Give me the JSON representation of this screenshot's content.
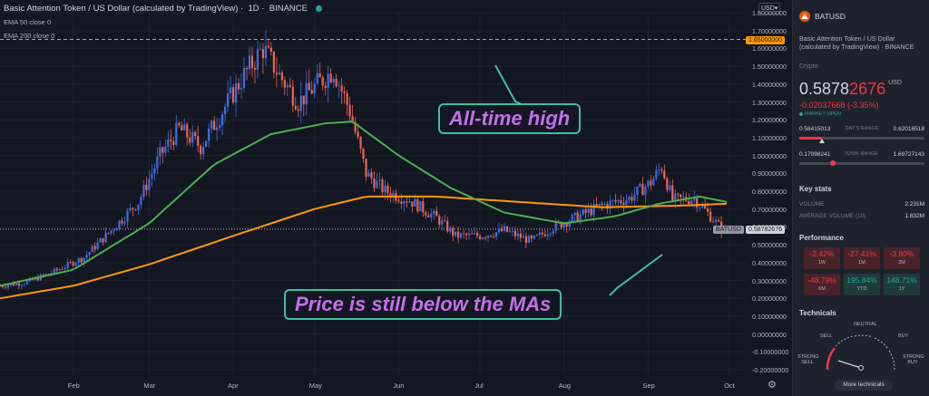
{
  "header": {
    "title": "Basic Attention Token / US Dollar (calculated by TradingView)",
    "interval": "1D",
    "exchange": "BINANCE",
    "ema50": "EMA 50 close 0",
    "ema200": "EMA 200 close 0",
    "currency": "USD"
  },
  "yaxis": {
    "labels": [
      "1.80000000",
      "1.70000000",
      "1.60000000",
      "1.50000000",
      "1.40000000",
      "1.30000000",
      "1.20000000",
      "1.10000000",
      "1.00000000",
      "0.90000000",
      "0.80000000",
      "0.70000000",
      "0.60000000",
      "0.50000000",
      "0.40000000",
      "0.30000000",
      "0.20000000",
      "0.10000000",
      "0.00000000",
      "-0.10000000",
      "-0.20000000"
    ],
    "ath_tag": "1.65000000",
    "price_tag": "0.58782676",
    "symbol_tag": "BATUSD"
  },
  "xaxis": {
    "labels": [
      "Feb",
      "Mar",
      "Apr",
      "May",
      "Jun",
      "Jul",
      "Aug",
      "Sep",
      "Oct"
    ]
  },
  "annotations": {
    "ath": "All-time high",
    "below": "Price is still below the MAs"
  },
  "colors": {
    "up": "#26a69a",
    "up_candle": "#3b6ee8",
    "down": "#f23645",
    "down_candle": "#f0624d",
    "ema50": "#4caf50",
    "ema200": "#ff9800",
    "annotation_text": "#c46fe8",
    "annotation_border": "#3ebfa0",
    "ath_line": "#ff9800"
  },
  "chart_data": {
    "type": "candlestick",
    "y_range": [
      -0.2,
      1.8
    ],
    "ath_level": 1.65,
    "last_price": 0.58782676,
    "x_start": "2021-01-05",
    "x_end": "2021-10-07",
    "close_path": [
      [
        "2021-01-05",
        0.27
      ],
      [
        "2021-01-15",
        0.29
      ],
      [
        "2021-01-25",
        0.35
      ],
      [
        "2021-02-05",
        0.43
      ],
      [
        "2021-02-15",
        0.58
      ],
      [
        "2021-02-25",
        0.74
      ],
      [
        "2021-03-05",
        1.0
      ],
      [
        "2021-03-12",
        1.15
      ],
      [
        "2021-03-20",
        1.05
      ],
      [
        "2021-03-28",
        1.25
      ],
      [
        "2021-04-05",
        1.45
      ],
      [
        "2021-04-12",
        1.6
      ],
      [
        "2021-04-18",
        1.45
      ],
      [
        "2021-04-25",
        1.3
      ],
      [
        "2021-05-02",
        1.4
      ],
      [
        "2021-05-08",
        1.48
      ],
      [
        "2021-05-14",
        1.25
      ],
      [
        "2021-05-20",
        0.9
      ],
      [
        "2021-05-27",
        0.8
      ],
      [
        "2021-06-05",
        0.75
      ],
      [
        "2021-06-15",
        0.65
      ],
      [
        "2021-06-22",
        0.55
      ],
      [
        "2021-07-01",
        0.55
      ],
      [
        "2021-07-10",
        0.58
      ],
      [
        "2021-07-20",
        0.52
      ],
      [
        "2021-07-28",
        0.6
      ],
      [
        "2021-08-05",
        0.65
      ],
      [
        "2021-08-15",
        0.72
      ],
      [
        "2021-08-25",
        0.76
      ],
      [
        "2021-09-02",
        0.85
      ],
      [
        "2021-09-06",
        0.94
      ],
      [
        "2021-09-10",
        0.75
      ],
      [
        "2021-09-18",
        0.76
      ],
      [
        "2021-09-24",
        0.66
      ],
      [
        "2021-09-28",
        0.59
      ]
    ],
    "ema50_path": [
      [
        "2021-01-05",
        0.27
      ],
      [
        "2021-02-01",
        0.36
      ],
      [
        "2021-03-01",
        0.62
      ],
      [
        "2021-03-25",
        0.95
      ],
      [
        "2021-04-15",
        1.12
      ],
      [
        "2021-05-05",
        1.18
      ],
      [
        "2021-05-15",
        1.19
      ],
      [
        "2021-06-01",
        1.0
      ],
      [
        "2021-06-20",
        0.82
      ],
      [
        "2021-07-10",
        0.68
      ],
      [
        "2021-08-01",
        0.62
      ],
      [
        "2021-08-20",
        0.66
      ],
      [
        "2021-09-05",
        0.73
      ],
      [
        "2021-09-20",
        0.77
      ],
      [
        "2021-09-30",
        0.74
      ]
    ],
    "ema200_path": [
      [
        "2021-01-05",
        0.2
      ],
      [
        "2021-02-01",
        0.27
      ],
      [
        "2021-03-01",
        0.39
      ],
      [
        "2021-04-01",
        0.55
      ],
      [
        "2021-05-01",
        0.7
      ],
      [
        "2021-05-20",
        0.77
      ],
      [
        "2021-06-15",
        0.77
      ],
      [
        "2021-07-15",
        0.74
      ],
      [
        "2021-08-15",
        0.71
      ],
      [
        "2021-09-15",
        0.72
      ],
      [
        "2021-09-30",
        0.73
      ]
    ]
  },
  "sidebar": {
    "symbol": "BATUSD",
    "description": "Basic Attention Token / US Dollar (calculated by TradingView) · BINANCE",
    "category": "Crypto",
    "price_main": "0.5878",
    "price_red": "2676",
    "currency": "USD",
    "change": "-0.02037668 (-3.35%)",
    "market_status": "MARKET OPEN",
    "day_low": "0.58415013",
    "day_label": "DAY'S RANGE",
    "day_high": "0.62016518",
    "day_fill": 0.18,
    "wk_low": "0.17098241",
    "wk_label": "52WK RANGE",
    "wk_high": "1.69727143",
    "wk_position": 0.27,
    "key_stats_title": "Key stats",
    "volume_label": "VOLUME",
    "volume_value": "2.231M",
    "avg_volume_label": "AVERAGE VOLUME (10)",
    "avg_volume_value": "1.832M",
    "performance_title": "Performance",
    "performance": [
      {
        "value": "-2.42%",
        "label": "1W",
        "sign": "neg"
      },
      {
        "value": "-27.41%",
        "label": "1M",
        "sign": "neg"
      },
      {
        "value": "-3.80%",
        "label": "3M",
        "sign": "neg"
      },
      {
        "value": "-48.79%",
        "label": "6M",
        "sign": "neg"
      },
      {
        "value": "195.84%",
        "label": "YTD",
        "sign": "pos"
      },
      {
        "value": "148.71%",
        "label": "1Y",
        "sign": "pos"
      }
    ],
    "technicals_title": "Technicals",
    "gauge": {
      "neutral": "NEUTRAL",
      "sell": "SELL",
      "buy": "BUY",
      "strong_sell": "STRONG SELL",
      "strong_buy": "STRONG BUY"
    },
    "more_technicals": "More technicals"
  }
}
